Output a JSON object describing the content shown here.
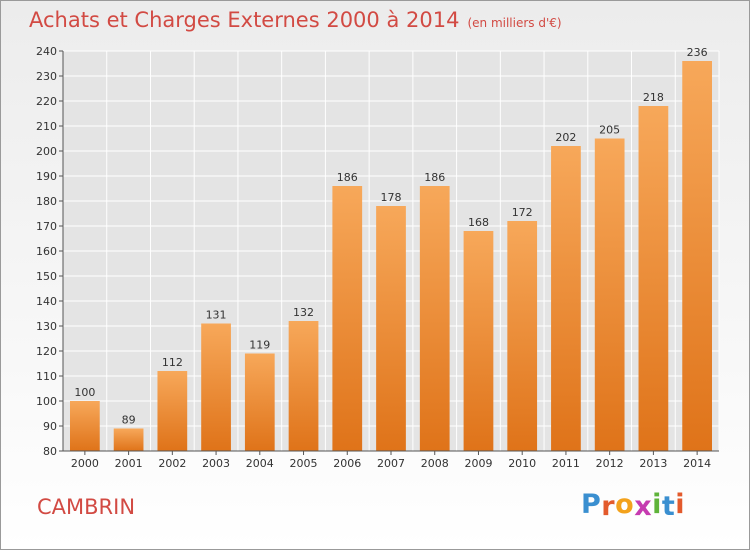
{
  "header": {
    "title": "Achats et Charges Externes 2000 à 2014",
    "unit": "(en milliers d'€)"
  },
  "footer": {
    "commune": "CAMBRIN",
    "logo_letters": [
      "P",
      "r",
      "o",
      "x",
      "i",
      "t",
      "i"
    ],
    "logo_colors": [
      "#3a8fd0",
      "#e35a2c",
      "#f3a21c",
      "#c63bb0",
      "#5fb33a",
      "#3a8fd0",
      "#e35a2c"
    ]
  },
  "chart_data": {
    "type": "bar",
    "title": "Achats et Charges Externes 2000 à 2014",
    "categories": [
      "2000",
      "2001",
      "2002",
      "2003",
      "2004",
      "2005",
      "2006",
      "2007",
      "2008",
      "2009",
      "2010",
      "2011",
      "2012",
      "2013",
      "2014"
    ],
    "values": [
      100,
      89,
      112,
      131,
      119,
      132,
      186,
      178,
      186,
      168,
      172,
      202,
      205,
      218,
      236
    ],
    "ylim": [
      80,
      240
    ],
    "yticks": [
      80,
      90,
      100,
      110,
      120,
      130,
      140,
      150,
      160,
      170,
      180,
      190,
      200,
      210,
      220,
      230,
      240
    ],
    "grid": true,
    "bar_color": "#ec8a35",
    "xlabel": "",
    "ylabel": ""
  }
}
